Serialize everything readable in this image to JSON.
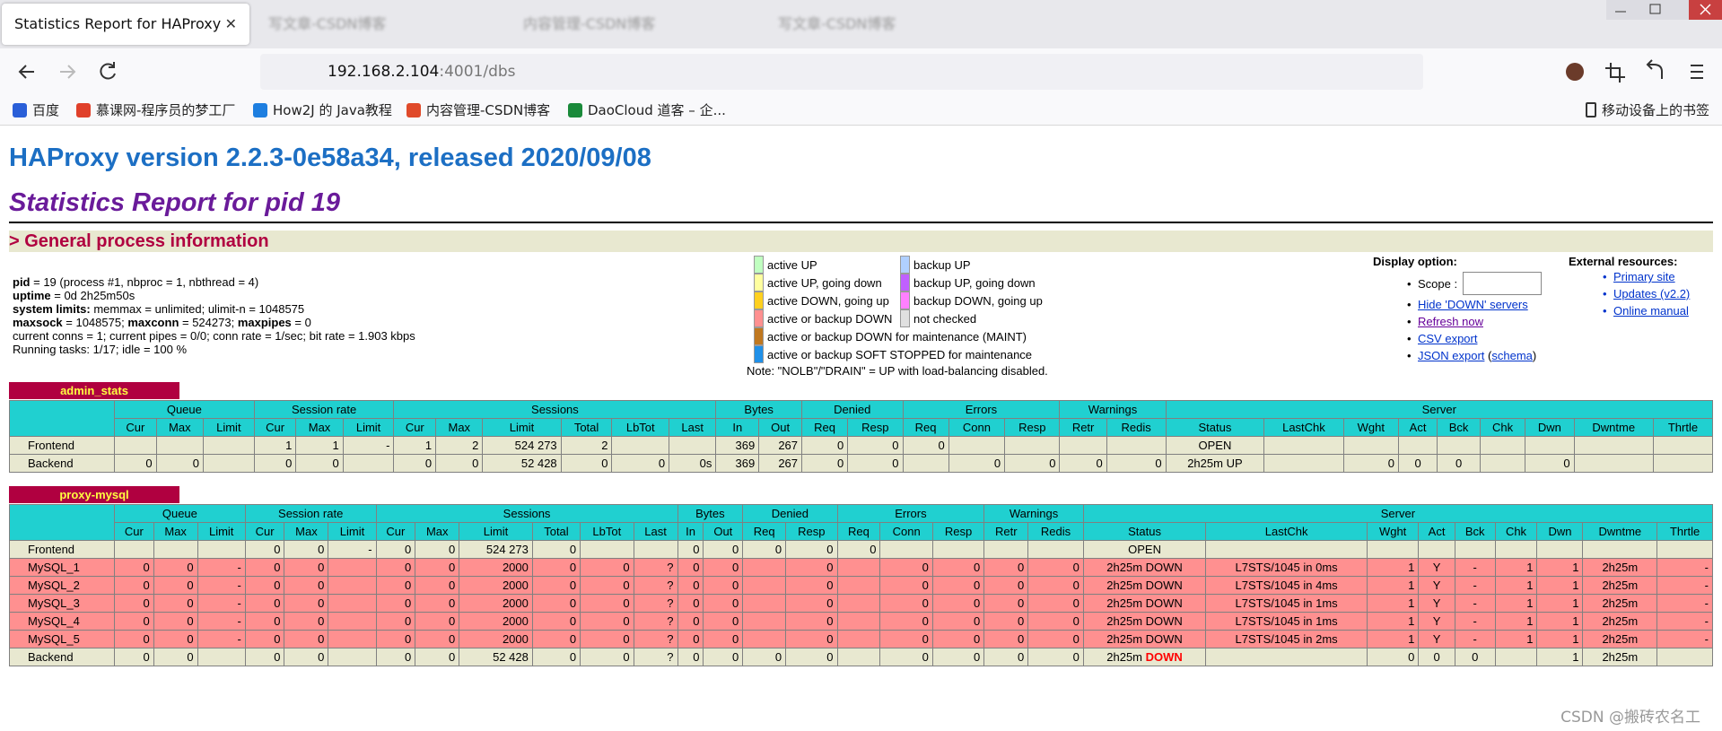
{
  "browser": {
    "tabs": [
      "Statistics Report for HAProxy",
      "写文章-CSDN博客",
      "内容管理-CSDN博客",
      "写文章-CSDN博客"
    ],
    "url": {
      "host": "192.168.2.104",
      "path": ":4001/dbs"
    },
    "bookmarks": [
      "百度",
      "慕课网-程序员的梦工厂",
      "How2J 的 Java教程",
      "内容管理-CSDN博客",
      "DaoCloud 道客 – 企..."
    ],
    "mobile_bookmarks": "移动设备上的书签"
  },
  "page": {
    "title": "HAProxy version 2.2.3-0e58a34, released 2020/09/08",
    "subtitle": "Statistics Report for pid 19",
    "section": "> General process information",
    "info": [
      [
        {
          "text": "pid",
          "bold": true
        },
        {
          "text": " = 19 (process #1, nbproc = 1, nbthread = 4)"
        }
      ],
      [
        {
          "text": "uptime",
          "bold": true
        },
        {
          "text": " = 0d 2h25m50s"
        }
      ],
      [
        {
          "text": "system limits:",
          "bold": true
        },
        {
          "text": " memmax = unlimited; ulimit-n = 1048575"
        }
      ],
      [
        {
          "text": "maxsock",
          "bold": true
        },
        {
          "text": " = 1048575; "
        },
        {
          "text": "maxconn",
          "bold": true
        },
        {
          "text": " = 524273; "
        },
        {
          "text": "maxpipes",
          "bold": true
        },
        {
          "text": " = 0"
        }
      ],
      [
        {
          "text": "current conns = 1; current pipes = 0/0; conn rate = 1/sec; bit rate = 1.903 kbps"
        }
      ],
      [
        {
          "text": "Running tasks: 1/17; idle = 100 %"
        }
      ]
    ],
    "legend": {
      "columns": [
        [
          {
            "label": "active UP",
            "color": "#c0ffc0"
          },
          {
            "label": "active UP, going down",
            "color": "#ffffa0"
          },
          {
            "label": "active DOWN, going up",
            "color": "#ffd020"
          },
          {
            "label": "active or backup DOWN",
            "color": "#ff9090"
          },
          {
            "label": "active or backup DOWN for maintenance (MAINT)",
            "color": "#c07820"
          },
          {
            "label": "active or backup SOFT STOPPED for maintenance",
            "color": "#2090e8"
          }
        ],
        [
          {
            "label": "backup UP",
            "color": "#b0d0ff"
          },
          {
            "label": "backup UP, going down",
            "color": "#c060ff"
          },
          {
            "label": "backup DOWN, going up",
            "color": "#ff80ff"
          },
          {
            "label": "not checked",
            "color": "#e0e0e0"
          }
        ]
      ],
      "note": "Note: \"NOLB\"/\"DRAIN\" = UP with load-balancing disabled."
    },
    "display_options": {
      "title": "Display option:",
      "scope": "Scope :",
      "links": [
        [
          {
            "text": "Hide 'DOWN' servers",
            "link": true
          }
        ],
        [
          {
            "text": "Refresh now",
            "link": true,
            "visited": true
          }
        ],
        [
          {
            "text": "CSV export",
            "link": true
          }
        ],
        [
          {
            "text": "JSON export",
            "link": true
          },
          {
            "text": " ("
          },
          {
            "text": "schema",
            "link": true
          },
          {
            "text": ")"
          }
        ]
      ]
    },
    "external": {
      "title": "External resources:",
      "links": [
        "Primary site",
        "Updates (v2.2)",
        "Online manual"
      ]
    },
    "header": [
      {
        "name": "Queue",
        "cols": [
          "Cur",
          "Max",
          "Limit"
        ]
      },
      {
        "name": "Session rate",
        "cols": [
          "Cur",
          "Max",
          "Limit"
        ]
      },
      {
        "name": "Sessions",
        "cols": [
          "Cur",
          "Max",
          "Limit",
          "Total",
          "LbTot",
          "Last"
        ]
      },
      {
        "name": "Bytes",
        "cols": [
          "In",
          "Out"
        ]
      },
      {
        "name": "Denied",
        "cols": [
          "Req",
          "Resp"
        ]
      },
      {
        "name": "Errors",
        "cols": [
          "Req",
          "Conn",
          "Resp"
        ]
      },
      {
        "name": "Warnings",
        "cols": [
          "Retr",
          "Redis"
        ]
      },
      {
        "name": "Server",
        "cols": [
          "Status",
          "LastChk",
          "Wght",
          "Act",
          "Bck",
          "Chk",
          "Dwn",
          "Dwntme",
          "Thrtle"
        ]
      }
    ],
    "alert_color": "#ff0000",
    "proxies": [
      {
        "name": "admin_stats",
        "rows": [
          {
            "color": "#e8e8d0",
            "cells": [
              "Frontend",
              null,
              null,
              null,
              1,
              1,
              "-",
              1,
              2,
              "524 273",
              2,
              null,
              null,
              369,
              267,
              0,
              0,
              0,
              null,
              null,
              null,
              null,
              "OPEN",
              null,
              null,
              null,
              null,
              null,
              null,
              null,
              null
            ]
          },
          {
            "color": "#e8e8d0",
            "cells": [
              "Backend",
              0,
              0,
              null,
              0,
              0,
              null,
              0,
              0,
              "52 428",
              0,
              0,
              "0s",
              369,
              267,
              0,
              0,
              null,
              0,
              0,
              0,
              0,
              "2h25m UP",
              null,
              0,
              0,
              0,
              null,
              0,
              null,
              null
            ]
          }
        ]
      },
      {
        "name": "proxy-mysql",
        "rows": [
          {
            "color": "#e8e8d0",
            "cells": [
              "Frontend",
              null,
              null,
              null,
              0,
              0,
              "-",
              0,
              0,
              "524 273",
              0,
              null,
              null,
              0,
              0,
              0,
              0,
              0,
              null,
              null,
              null,
              null,
              "OPEN",
              null,
              null,
              null,
              null,
              null,
              null,
              null,
              null
            ]
          },
          {
            "color": "#ff9090",
            "cells": [
              "MySQL_1",
              0,
              0,
              "-",
              0,
              0,
              null,
              0,
              0,
              2000,
              0,
              0,
              "?",
              0,
              0,
              null,
              0,
              null,
              0,
              0,
              0,
              0,
              "2h25m DOWN",
              "L7STS/1045 in 0ms",
              1,
              "Y",
              "-",
              1,
              1,
              "2h25m",
              "-"
            ]
          },
          {
            "color": "#ff9090",
            "cells": [
              "MySQL_2",
              0,
              0,
              "-",
              0,
              0,
              null,
              0,
              0,
              2000,
              0,
              0,
              "?",
              0,
              0,
              null,
              0,
              null,
              0,
              0,
              0,
              0,
              "2h25m DOWN",
              "L7STS/1045 in 4ms",
              1,
              "Y",
              "-",
              1,
              1,
              "2h25m",
              "-"
            ]
          },
          {
            "color": "#ff9090",
            "cells": [
              "MySQL_3",
              0,
              0,
              "-",
              0,
              0,
              null,
              0,
              0,
              2000,
              0,
              0,
              "?",
              0,
              0,
              null,
              0,
              null,
              0,
              0,
              0,
              0,
              "2h25m DOWN",
              "L7STS/1045 in 1ms",
              1,
              "Y",
              "-",
              1,
              1,
              "2h25m",
              "-"
            ]
          },
          {
            "color": "#ff9090",
            "cells": [
              "MySQL_4",
              0,
              0,
              "-",
              0,
              0,
              null,
              0,
              0,
              2000,
              0,
              0,
              "?",
              0,
              0,
              null,
              0,
              null,
              0,
              0,
              0,
              0,
              "2h25m DOWN",
              "L7STS/1045 in 1ms",
              1,
              "Y",
              "-",
              1,
              1,
              "2h25m",
              "-"
            ]
          },
          {
            "color": "#ff9090",
            "cells": [
              "MySQL_5",
              0,
              0,
              "-",
              0,
              0,
              null,
              0,
              0,
              2000,
              0,
              0,
              "?",
              0,
              0,
              null,
              0,
              null,
              0,
              0,
              0,
              0,
              "2h25m DOWN",
              "L7STS/1045 in 2ms",
              1,
              "Y",
              "-",
              1,
              1,
              "2h25m",
              "-"
            ]
          },
          {
            "color": "#e8e8d0",
            "cells": [
              "Backend",
              0,
              0,
              null,
              0,
              0,
              null,
              0,
              0,
              "52 428",
              0,
              0,
              "?",
              0,
              0,
              0,
              0,
              null,
              0,
              0,
              0,
              0,
              [
                "2h25m ",
                "DOWN"
              ],
              null,
              0,
              0,
              0,
              null,
              1,
              "2h25m",
              null
            ]
          }
        ]
      }
    ],
    "watermark": "CSDN @搬砖农名工"
  }
}
